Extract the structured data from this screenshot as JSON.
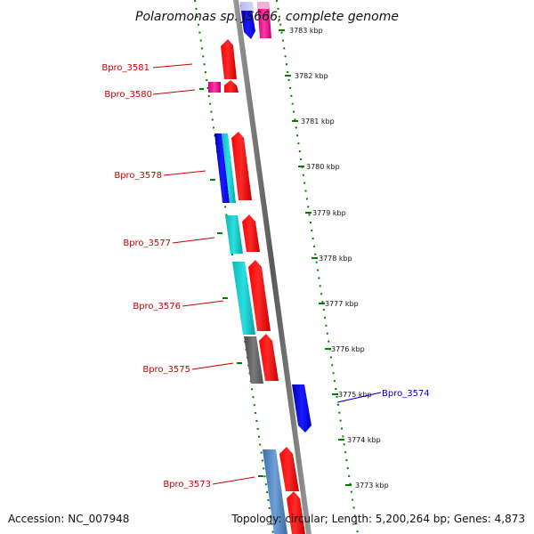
{
  "title": "Polaromonas sp. JS666, complete genome",
  "accession": "Accession: NC_007948",
  "topology": "Topology: circular; Length: 5,200,264 bp; Genes: 4,873",
  "colors": {
    "label_red": "#cc0000",
    "label_blue": "#0000cc",
    "tick_green": "#008000",
    "forward_gene": "#ff0000",
    "backbone": "#888888"
  },
  "scale_labels": [
    "3783 kbp",
    "3782 kbp",
    "3781 kbp",
    "3780 kbp",
    "3779 kbp",
    "3778 kbp",
    "3777 kbp",
    "3776 kbp",
    "3775 kbp",
    "3774 kbp",
    "3773 kbp"
  ],
  "gene_labels": [
    {
      "text": "Bpro_3581",
      "color": "#cc0000"
    },
    {
      "text": "Bpro_3580",
      "color": "#cc0000"
    },
    {
      "text": "Bpro_3578",
      "color": "#cc0000"
    },
    {
      "text": "Bpro_3577",
      "color": "#cc0000"
    },
    {
      "text": "Bpro_3576",
      "color": "#cc0000"
    },
    {
      "text": "Bpro_3575",
      "color": "#cc0000"
    },
    {
      "text": "Bpro_3574",
      "color": "#0000cc"
    },
    {
      "text": "Bpro_3573",
      "color": "#cc0000"
    }
  ]
}
